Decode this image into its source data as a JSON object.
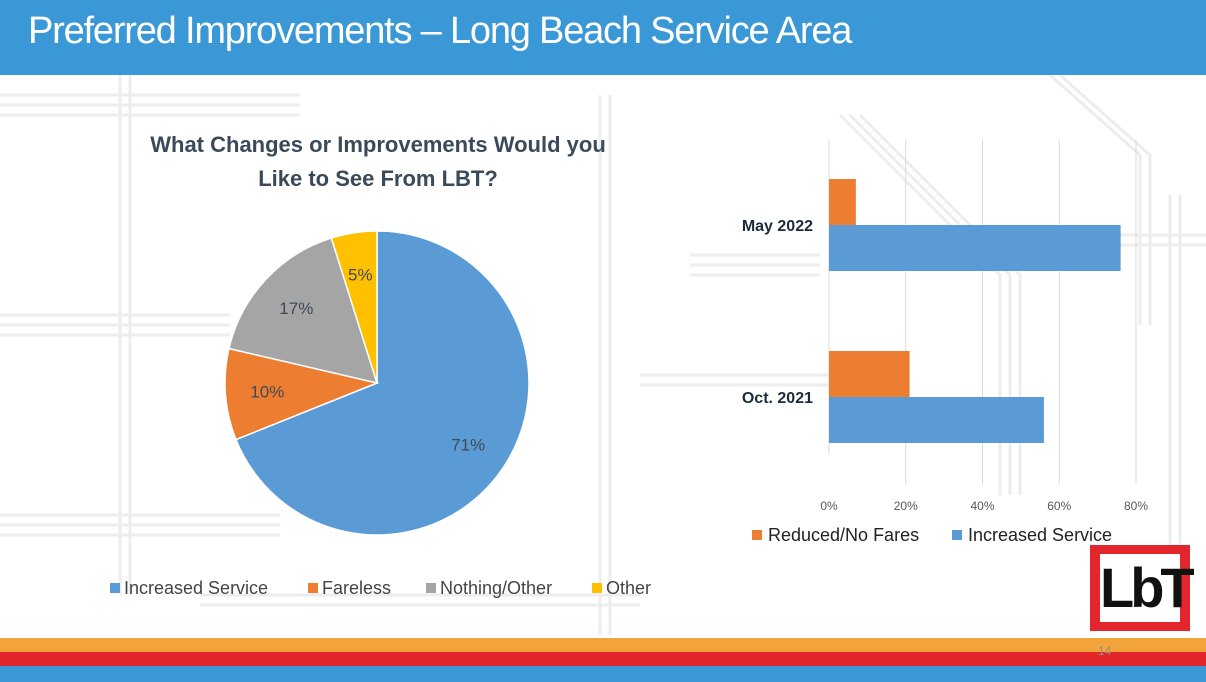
{
  "slide": {
    "title": "Preferred Improvements – Long Beach Service Area",
    "page_number": "14",
    "logo_text": "LbT"
  },
  "colors": {
    "header": "#3a98d6",
    "increased_service": "#5b9bd5",
    "fareless": "#ed7d31",
    "nothing_other": "#a5a5a5",
    "other": "#ffc000"
  },
  "chart_data": [
    {
      "type": "pie",
      "title": "What Changes or Improvements Would you Like to See From LBT?",
      "title_lines": [
        "What Changes or Improvements Would you",
        "Like to See From LBT?"
      ],
      "slices": [
        {
          "name": "Increased Service",
          "value": 71,
          "label": "71%"
        },
        {
          "name": "Fareless",
          "value": 10,
          "label": "10%"
        },
        {
          "name": "Nothing/Other",
          "value": 17,
          "label": "17%"
        },
        {
          "name": "Other",
          "value": 5,
          "label": "5%"
        }
      ],
      "legend_position": "bottom"
    },
    {
      "type": "bar",
      "orientation": "horizontal",
      "categories": [
        "May 2022",
        "Oct. 2021"
      ],
      "series": [
        {
          "name": "Reduced/No Fares",
          "values": [
            7,
            21
          ]
        },
        {
          "name": "Increased Service",
          "values": [
            76,
            56
          ]
        }
      ],
      "xlim": [
        0,
        80
      ],
      "xticks": [
        "0%",
        "20%",
        "40%",
        "60%",
        "80%"
      ],
      "grid": true,
      "legend_position": "bottom"
    }
  ]
}
